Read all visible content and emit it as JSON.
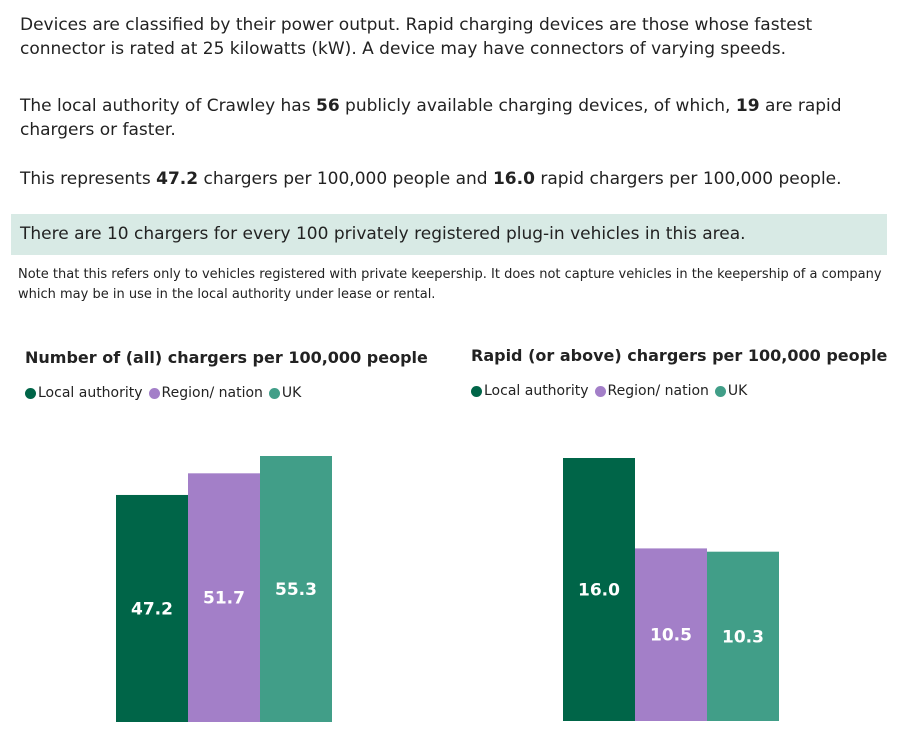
{
  "intro": {
    "p1": "Devices are classified by their power output. Rapid charging devices are those whose fastest connector is rated at 25 kilowatts (kW). A device may have connectors of varying speeds.",
    "p2_a": "The local authority of Crawley has ",
    "p2_total": "56",
    "p2_b": " publicly available charging devices, of which, ",
    "p2_rapid": "19",
    "p2_c": " are rapid chargers or faster.",
    "p3_a": "This represents ",
    "p3_all": "47.2",
    "p3_b": " chargers per 100,000 people and ",
    "p3_rapid": "16.0",
    "p3_c": " rapid chargers per 100,000 people.",
    "callout": "There are 10 chargers for every 100 privately registered plug-in vehicles in this area.",
    "note": "Note that this refers only to vehicles registered with private keepership. It does not capture vehicles in the keepership of a company which may be in use in the local authority under lease or rental."
  },
  "colors": {
    "local": "#006548",
    "region": "#a37fc8",
    "uk": "#419e88",
    "callout_bg": "#d8eae5"
  },
  "chart_data": [
    {
      "type": "bar",
      "title": "Number of (all) chargers per 100,000 people",
      "categories": [
        "Local authority",
        "Region/ nation",
        "UK"
      ],
      "values": [
        47.2,
        51.7,
        55.3
      ],
      "labels": [
        "47.2",
        "51.7",
        "55.3"
      ],
      "legend": [
        "Local authority",
        "Region/ nation",
        "UK"
      ],
      "legend_position": "top-left",
      "ylim": [
        0,
        55.3
      ],
      "grid": false
    },
    {
      "type": "bar",
      "title": "Rapid (or above) chargers per 100,000 people",
      "categories": [
        "Local authority",
        "Region/ nation",
        "UK"
      ],
      "values": [
        16.0,
        10.5,
        10.3
      ],
      "labels": [
        "16.0",
        "10.5",
        "10.3"
      ],
      "legend": [
        "Local authority",
        "Region/ nation",
        "UK"
      ],
      "legend_position": "top-left",
      "ylim": [
        0,
        16.0
      ],
      "grid": false
    }
  ]
}
